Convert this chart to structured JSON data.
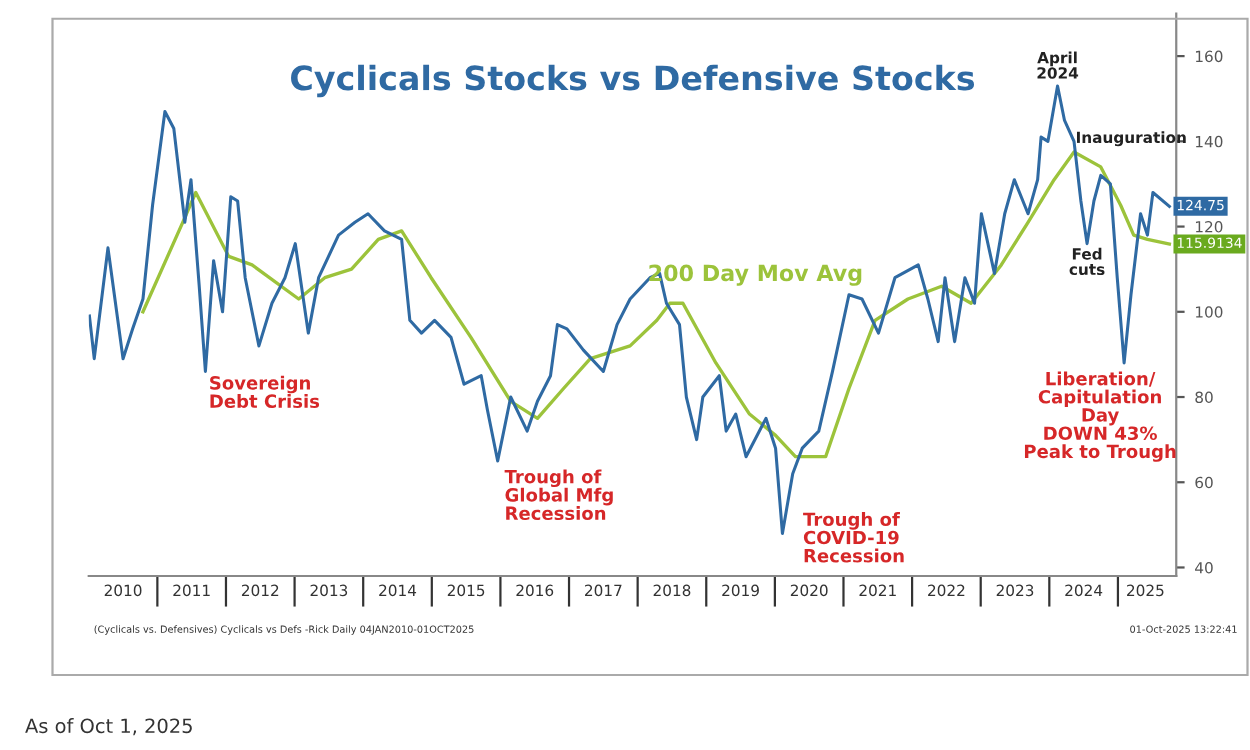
{
  "chart_data": {
    "type": "line",
    "title": "Cyclicals Stocks vs Defensive Stocks",
    "xlim": [
      2010,
      2025.85
    ],
    "ylim": [
      38,
      170
    ],
    "xticks": [
      {
        "value": 2010.5,
        "label": "2010"
      },
      {
        "value": 2011,
        "label": null
      },
      {
        "value": 2011.5,
        "label": "2011"
      },
      {
        "value": 2012,
        "label": null
      },
      {
        "value": 2012.5,
        "label": "2012"
      },
      {
        "value": 2013,
        "label": null
      },
      {
        "value": 2013.5,
        "label": "2013"
      },
      {
        "value": 2014,
        "label": null
      },
      {
        "value": 2014.5,
        "label": "2014"
      },
      {
        "value": 2015,
        "label": null
      },
      {
        "value": 2015.5,
        "label": "2015"
      },
      {
        "value": 2016,
        "label": null
      },
      {
        "value": 2016.5,
        "label": "2016"
      },
      {
        "value": 2017,
        "label": null
      },
      {
        "value": 2017.5,
        "label": "2017"
      },
      {
        "value": 2018,
        "label": null
      },
      {
        "value": 2018.5,
        "label": "2018"
      },
      {
        "value": 2019,
        "label": null
      },
      {
        "value": 2019.5,
        "label": "2019"
      },
      {
        "value": 2020,
        "label": null
      },
      {
        "value": 2020.5,
        "label": "2020"
      },
      {
        "value": 2021,
        "label": null
      },
      {
        "value": 2021.5,
        "label": "2021"
      },
      {
        "value": 2022,
        "label": null
      },
      {
        "value": 2022.5,
        "label": "2022"
      },
      {
        "value": 2023,
        "label": null
      },
      {
        "value": 2023.5,
        "label": "2023"
      },
      {
        "value": 2024,
        "label": null
      },
      {
        "value": 2024.5,
        "label": "2024"
      },
      {
        "value": 2025,
        "label": null
      },
      {
        "value": 2025.4,
        "label": "2025"
      }
    ],
    "yticks": [
      40,
      60,
      80,
      100,
      120,
      140,
      160
    ],
    "grid": false,
    "legend": false,
    "series": [
      {
        "color": "#2f6aa3",
        "x": [
          2010.01,
          2010.08,
          2010.28,
          2010.5,
          2010.64,
          2010.79,
          2010.93,
          2011.11,
          2011.24,
          2011.4,
          2011.49,
          2011.61,
          2011.7,
          2011.82,
          2011.95,
          2012.07,
          2012.17,
          2012.28,
          2012.48,
          2012.67,
          2012.86,
          2013.01,
          2013.2,
          2013.35,
          2013.64,
          2013.88,
          2014.07,
          2014.31,
          2014.56,
          2014.68,
          2014.85,
          2015.04,
          2015.28,
          2015.47,
          2015.72,
          2015.81,
          2015.96,
          2016.15,
          2016.39,
          2016.54,
          2016.73,
          2016.83,
          2016.97,
          2017.21,
          2017.5,
          2017.7,
          2017.89,
          2018.18,
          2018.32,
          2018.42,
          2018.61,
          2018.71,
          2018.86,
          2018.95,
          2019.19,
          2019.29,
          2019.43,
          2019.58,
          2019.87,
          2020.01,
          2020.11,
          2020.26,
          2020.4,
          2020.64,
          2020.84,
          2021.08,
          2021.27,
          2021.51,
          2021.75,
          2022.09,
          2022.23,
          2022.38,
          2022.48,
          2022.62,
          2022.77,
          2022.91,
          2023.01,
          2023.2,
          2023.35,
          2023.49,
          2023.69,
          2023.83,
          2023.88,
          2023.98,
          2024.12,
          2024.22,
          2024.36,
          2024.46,
          2024.55,
          2024.65,
          2024.75,
          2024.89,
          2024.99,
          2025.09,
          2025.19,
          2025.33,
          2025.43,
          2025.51,
          2025.75
        ],
        "values": [
          99,
          89,
          115,
          89,
          96,
          103,
          125,
          147,
          143,
          121,
          131,
          106,
          86,
          112,
          100,
          127,
          126,
          108,
          92,
          102,
          108,
          116,
          95,
          108,
          118,
          121,
          123,
          119,
          117,
          98,
          95,
          98,
          94,
          83,
          85,
          77,
          65,
          80,
          72,
          79,
          85,
          97,
          96,
          91,
          86,
          97,
          103,
          108,
          109,
          102,
          97,
          80,
          70,
          80,
          85,
          72,
          76,
          66,
          75,
          68,
          48,
          62,
          68,
          72,
          86,
          104,
          103,
          95,
          108,
          111,
          103,
          93,
          108,
          93,
          108,
          102,
          123,
          109,
          123,
          131,
          123,
          131,
          141,
          140,
          153,
          145,
          140,
          126,
          116,
          126,
          132,
          130,
          108,
          88,
          104,
          123,
          118,
          128,
          124.75
        ]
      },
      {
        "name": "200 Day Mov Avg",
        "color": "#9cc33b",
        "x": [
          2010.79,
          2011.37,
          2011.56,
          2012.04,
          2012.38,
          2013.06,
          2013.44,
          2013.83,
          2014.22,
          2014.56,
          2014.99,
          2015.57,
          2016.15,
          2016.54,
          2016.92,
          2017.31,
          2017.89,
          2018.28,
          2018.47,
          2018.66,
          2019.14,
          2019.63,
          2020.01,
          2020.3,
          2020.74,
          2021.08,
          2021.46,
          2021.94,
          2022.43,
          2022.86,
          2023.3,
          2023.69,
          2024.07,
          2024.36,
          2024.75,
          2025.04,
          2025.23,
          2025.43,
          2025.75
        ],
        "values": [
          100,
          121,
          128,
          113,
          111,
          103,
          108,
          110,
          117,
          119,
          108,
          94,
          79,
          75,
          82,
          89,
          92,
          98,
          102,
          102,
          88,
          76,
          71,
          66,
          66,
          82,
          98,
          103,
          106,
          102,
          111,
          121,
          131,
          137.5,
          134,
          125,
          118,
          117,
          115.91
        ]
      }
    ],
    "annotations": [
      {
        "text": "Sovereign\nDebt Crisis",
        "x": 2011.7,
        "y": 86
      },
      {
        "text": "Trough of\nGlobal Mfg\nRecession",
        "x": 2015.96,
        "y": 65
      },
      {
        "text": "Trough of\nCOVID-19\nRecession",
        "x": 2020.11,
        "y": 48
      },
      {
        "text": "April\n2024",
        "x": 2024.12,
        "y": 153
      },
      "Inauguration",
      {
        "text": "Fed\ncuts",
        "x": 2024.55,
        "y": 116
      },
      {
        "text": "Liberation/\nCapitulation\nDay\nDOWN 43%\nPeak to Trough",
        "x": 2025.09,
        "y": 88
      },
      {
        "text": "124.75",
        "x": 2025.75,
        "y": 124.75
      },
      {
        "text": "115.9134",
        "x": 2025.75,
        "y": 115.91
      },
      "(Cyclicals vs. Defensives) Cyclicals vs Defs -Rick Daily 04JAN2010-01OCT2025",
      "01-Oct-2025 13:22:41",
      "As of Oct 1, 2025"
    ]
  }
}
